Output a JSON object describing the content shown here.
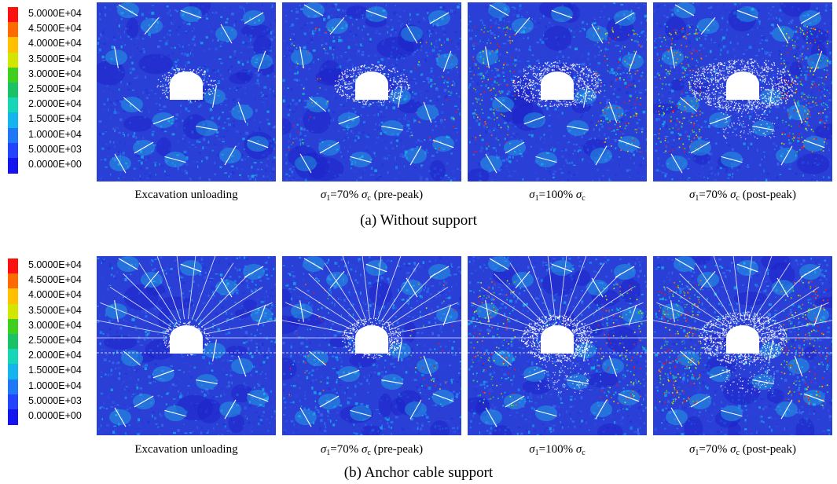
{
  "legend": {
    "labels": [
      "5.0000E+04",
      "4.5000E+04",
      "4.0000E+04",
      "3.5000E+04",
      "3.0000E+04",
      "2.5000E+04",
      "2.0000E+04",
      "1.5000E+04",
      "1.0000E+04",
      "5.0000E+03",
      "0.0000E+00"
    ],
    "colors": [
      "#ff1010",
      "#ff6a00",
      "#ffc000",
      "#d2e600",
      "#3fcf1f",
      "#19c266",
      "#16d6b8",
      "#14b4ef",
      "#1f78f5",
      "#2244ff",
      "#1414ee"
    ]
  },
  "rows": [
    {
      "title": "(a) Without support",
      "support": false,
      "panels": [
        {
          "stage": 0,
          "caption": {
            "text": "Excavation unloading"
          }
        },
        {
          "stage": 1,
          "caption": {
            "sym": "σ",
            "sub": "1",
            "mid": "=70% ",
            "sym2": "σ",
            "sub2": "c",
            "tail": " (pre-peak)"
          }
        },
        {
          "stage": 2,
          "caption": {
            "sym": "σ",
            "sub": "1",
            "mid": "=100% ",
            "sym2": "σ",
            "sub2": "c",
            "tail": ""
          }
        },
        {
          "stage": 3,
          "caption": {
            "sym": "σ",
            "sub": "1",
            "mid": "=70% ",
            "sym2": "σ",
            "sub2": "c",
            "tail": " (post-peak)"
          }
        }
      ]
    },
    {
      "title": "(b) Anchor cable support",
      "support": true,
      "panels": [
        {
          "stage": 0,
          "caption": {
            "text": "Excavation unloading"
          }
        },
        {
          "stage": 1,
          "caption": {
            "sym": "σ",
            "sub": "1",
            "mid": "=70% ",
            "sym2": "σ",
            "sub2": "c",
            "tail": " (pre-peak)"
          }
        },
        {
          "stage": 2,
          "caption": {
            "sym": "σ",
            "sub": "1",
            "mid": "=100% ",
            "sym2": "σ",
            "sub2": "c",
            "tail": ""
          }
        },
        {
          "stage": 3,
          "caption": {
            "sym": "σ",
            "sub": "1",
            "mid": "=70% ",
            "sym2": "σ",
            "sub2": "c",
            "tail": " (post-peak)"
          }
        }
      ]
    }
  ]
}
